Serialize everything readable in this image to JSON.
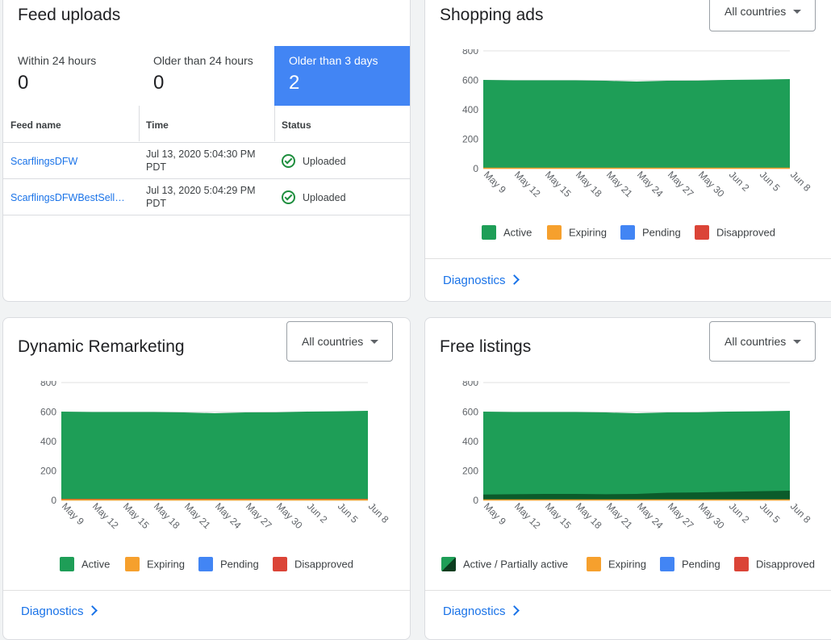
{
  "feed_uploads": {
    "title": "Feed uploads",
    "stats": [
      {
        "label": "Within 24 hours",
        "value": "0"
      },
      {
        "label": "Older than 24 hours",
        "value": "0"
      },
      {
        "label": "Older than 3 days",
        "value": "2"
      }
    ],
    "columns": [
      "Feed name",
      "Time",
      "Status"
    ],
    "rows": [
      {
        "name": "ScarflingsDFW",
        "time_line1": "Jul 13, 2020 5:04:30 PM",
        "time_line2": "PDT",
        "status": "Uploaded"
      },
      {
        "name": "ScarflingsDFWBestSell…",
        "time_line1": "Jul 13, 2020 5:04:29 PM",
        "time_line2": "PDT",
        "status": "Uploaded"
      }
    ]
  },
  "shopping_ads": {
    "title": "Shopping ads",
    "dropdown": "All countries",
    "legend": [
      {
        "label": "Active",
        "color": "#1e9e57"
      },
      {
        "label": "Expiring",
        "color": "#f6a02d"
      },
      {
        "label": "Pending",
        "color": "#4285f4"
      },
      {
        "label": "Disapproved",
        "color": "#db4437"
      }
    ],
    "diagnostics": "Diagnostics"
  },
  "dynamic_remarketing": {
    "title": "Dynamic Remarketing",
    "dropdown": "All countries",
    "legend": [
      {
        "label": "Active",
        "color": "#1e9e57"
      },
      {
        "label": "Expiring",
        "color": "#f6a02d"
      },
      {
        "label": "Pending",
        "color": "#4285f4"
      },
      {
        "label": "Disapproved",
        "color": "#db4437"
      }
    ],
    "diagnostics": "Diagnostics"
  },
  "free_listings": {
    "title": "Free listings",
    "dropdown": "All countries",
    "legend": [
      {
        "label": "Active / Partially active",
        "color": "#1e9e57"
      },
      {
        "label": "Expiring",
        "color": "#f6a02d"
      },
      {
        "label": "Pending",
        "color": "#4285f4"
      },
      {
        "label": "Disapproved",
        "color": "#db4437"
      }
    ],
    "diagnostics": "Diagnostics"
  },
  "chart_data": [
    {
      "type": "area",
      "chart": "shopping_ads",
      "x_ticks": [
        "May 9",
        "May 12",
        "May 15",
        "May 18",
        "May 21",
        "May 24",
        "May 27",
        "May 30",
        "Jun 2",
        "Jun 5",
        "Jun 8"
      ],
      "ylim": [
        0,
        800
      ],
      "y_ticks": [
        0,
        200,
        400,
        600,
        800
      ],
      "series": [
        {
          "name": "Active",
          "values": [
            603,
            600,
            600,
            600,
            597,
            592,
            597,
            598,
            603,
            605,
            608
          ]
        },
        {
          "name": "Expiring",
          "values": [
            0,
            0,
            0,
            0,
            0,
            0,
            0,
            0,
            0,
            0,
            0
          ]
        },
        {
          "name": "Pending",
          "values": [
            0,
            0,
            0,
            0,
            0,
            0,
            0,
            0,
            0,
            0,
            0
          ]
        },
        {
          "name": "Disapproved",
          "values": [
            0,
            0,
            0,
            0,
            0,
            0,
            0,
            0,
            0,
            0,
            0
          ]
        }
      ]
    },
    {
      "type": "area",
      "chart": "dynamic_remarketing",
      "x_ticks": [
        "May 9",
        "May 12",
        "May 15",
        "May 18",
        "May 21",
        "May 24",
        "May 27",
        "May 30",
        "Jun 2",
        "Jun 5",
        "Jun 8"
      ],
      "ylim": [
        0,
        800
      ],
      "y_ticks": [
        0,
        200,
        400,
        600,
        800
      ],
      "series": [
        {
          "name": "Active",
          "values": [
            603,
            600,
            600,
            600,
            597,
            592,
            597,
            598,
            603,
            605,
            608
          ]
        },
        {
          "name": "Expiring",
          "values": [
            0,
            0,
            0,
            0,
            0,
            0,
            0,
            0,
            0,
            0,
            0
          ]
        },
        {
          "name": "Pending",
          "values": [
            0,
            0,
            0,
            0,
            0,
            0,
            0,
            0,
            0,
            0,
            0
          ]
        },
        {
          "name": "Disapproved",
          "values": [
            10,
            10,
            10,
            10,
            10,
            10,
            10,
            10,
            10,
            10,
            10
          ]
        }
      ]
    },
    {
      "type": "area",
      "chart": "free_listings",
      "x_ticks": [
        "May 9",
        "May 12",
        "May 15",
        "May 18",
        "May 21",
        "May 24",
        "May 27",
        "May 30",
        "Jun 2",
        "Jun 5",
        "Jun 8"
      ],
      "ylim": [
        0,
        800
      ],
      "y_ticks": [
        0,
        200,
        400,
        600,
        800
      ],
      "series": [
        {
          "name": "Active / Partially active",
          "values": [
            603,
            600,
            600,
            600,
            597,
            592,
            597,
            598,
            603,
            605,
            608
          ]
        },
        {
          "name": "Partially active",
          "values": [
            40,
            42,
            44,
            44,
            42,
            44,
            52,
            54,
            58,
            62,
            66
          ]
        },
        {
          "name": "Expiring",
          "values": [
            0,
            0,
            0,
            0,
            0,
            0,
            0,
            0,
            0,
            0,
            0
          ]
        },
        {
          "name": "Pending",
          "values": [
            0,
            0,
            0,
            0,
            0,
            0,
            0,
            0,
            0,
            0,
            0
          ]
        },
        {
          "name": "Disapproved",
          "values": [
            0,
            0,
            0,
            0,
            0,
            0,
            0,
            0,
            0,
            0,
            0
          ]
        }
      ]
    }
  ]
}
